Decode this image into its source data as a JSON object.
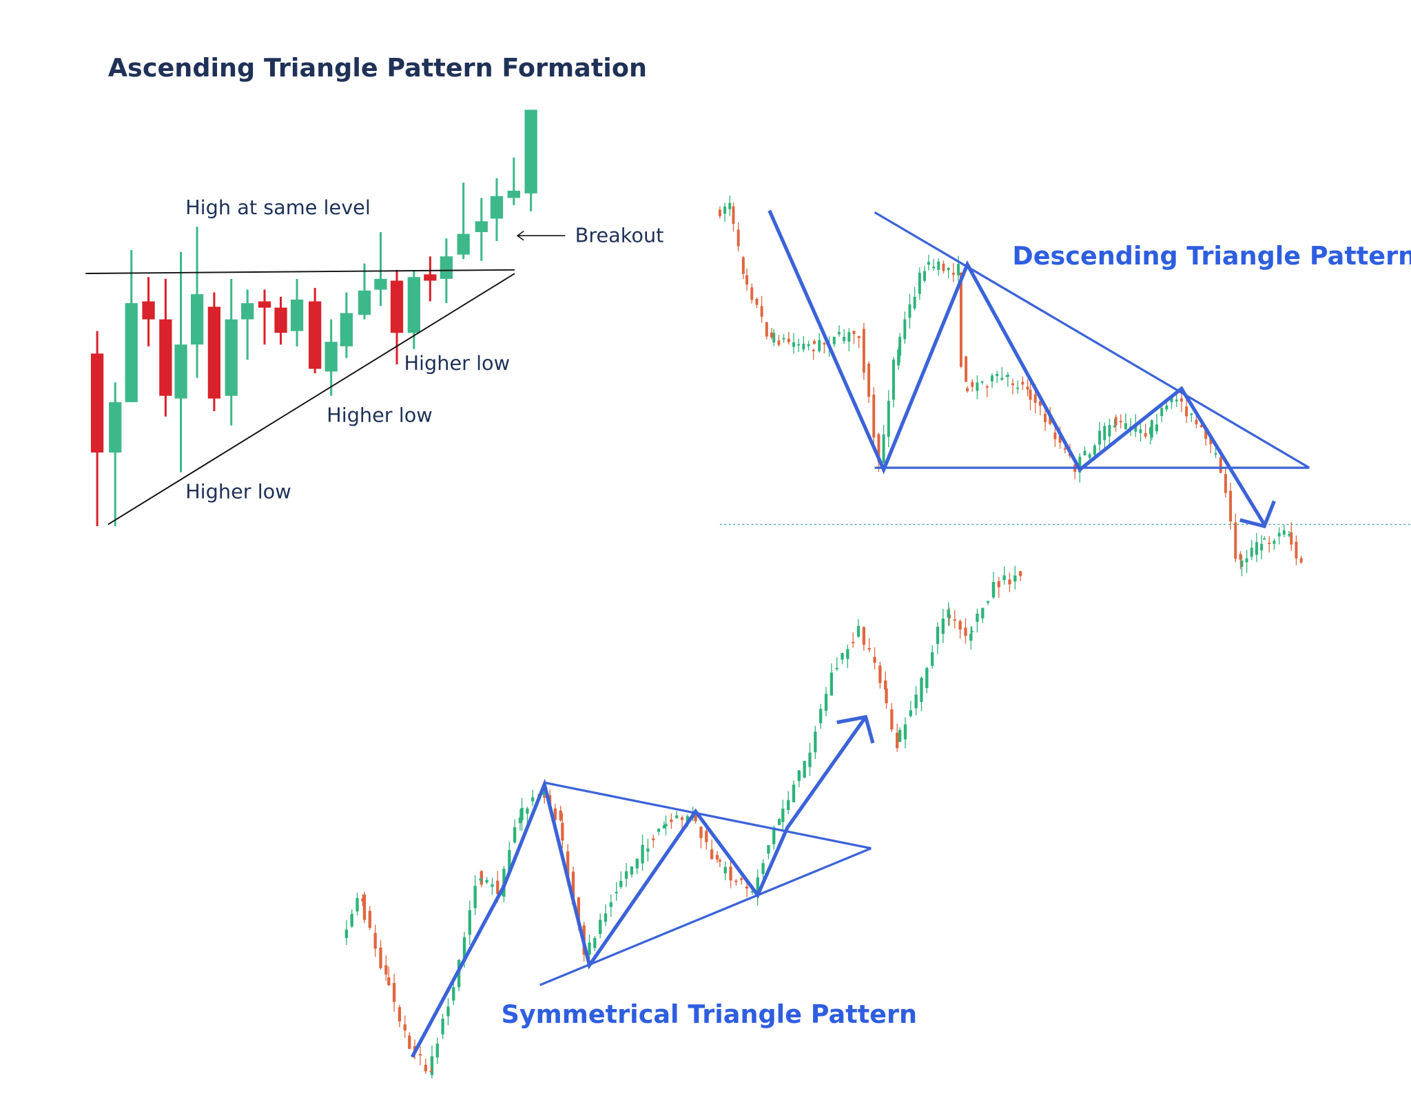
{
  "ascending": {
    "title": "Ascending Triangle Pattern Formation",
    "high_label": "High at same level",
    "breakout_label": "Breakout",
    "higher_low_labels": [
      "Higher low",
      "Higher low",
      "Higher low"
    ]
  },
  "descending": {
    "title": "Descending Triangle Pattern"
  },
  "symmetrical": {
    "title": "Symmetrical Triangle Pattern"
  }
}
